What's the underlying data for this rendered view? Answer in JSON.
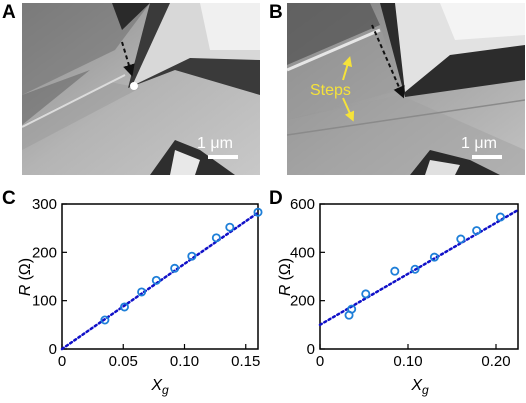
{
  "panels": {
    "A": {
      "label": "A",
      "scale_bar": "1 μm"
    },
    "B": {
      "label": "B",
      "scale_bar": "1 μm",
      "annotation": "Steps",
      "annotation_color": "#f5e23a"
    }
  },
  "chart_data": [
    {
      "panel_label": "C",
      "type": "scatter",
      "ylabel_var": "R",
      "ylabel_unit": "(Ω)",
      "xlabel_var": "X",
      "xlabel_sub": "g",
      "xlim": [
        0,
        0.16
      ],
      "ylim": [
        0,
        300
      ],
      "xticks": [
        0,
        0.05,
        0.1,
        0.15
      ],
      "xtick_labels": [
        "0",
        "0.05",
        "0.10",
        "0.15"
      ],
      "yticks": [
        0,
        100,
        200,
        300
      ],
      "ytick_labels": [
        "0",
        "100",
        "200",
        "300"
      ],
      "points": [
        [
          0.035,
          60
        ],
        [
          0.051,
          87
        ],
        [
          0.065,
          118
        ],
        [
          0.077,
          142
        ],
        [
          0.092,
          167
        ],
        [
          0.106,
          192
        ],
        [
          0.126,
          230
        ],
        [
          0.137,
          252
        ],
        [
          0.16,
          283
        ]
      ],
      "fit": [
        [
          0,
          0
        ],
        [
          0.16,
          282
        ]
      ],
      "marker_color": "#1e7fd8",
      "fit_color": "#1010c8"
    },
    {
      "panel_label": "D",
      "type": "scatter",
      "ylabel_var": "R",
      "ylabel_unit": "(Ω)",
      "xlabel_var": "X",
      "xlabel_sub": "g",
      "xlim": [
        0,
        0.225
      ],
      "ylim": [
        0,
        600
      ],
      "xticks": [
        0,
        0.1,
        0.2
      ],
      "xtick_labels": [
        "0",
        "0.10",
        "0.20"
      ],
      "yticks": [
        0,
        200,
        400,
        600
      ],
      "ytick_labels": [
        "0",
        "200",
        "400",
        "600"
      ],
      "points": [
        [
          0.033,
          140
        ],
        [
          0.036,
          165
        ],
        [
          0.052,
          228
        ],
        [
          0.085,
          322
        ],
        [
          0.108,
          330
        ],
        [
          0.13,
          380
        ],
        [
          0.16,
          455
        ],
        [
          0.178,
          490
        ],
        [
          0.205,
          546
        ]
      ],
      "fit": [
        [
          0,
          100
        ],
        [
          0.225,
          575
        ]
      ],
      "marker_color": "#1e7fd8",
      "fit_color": "#1010c8"
    }
  ]
}
